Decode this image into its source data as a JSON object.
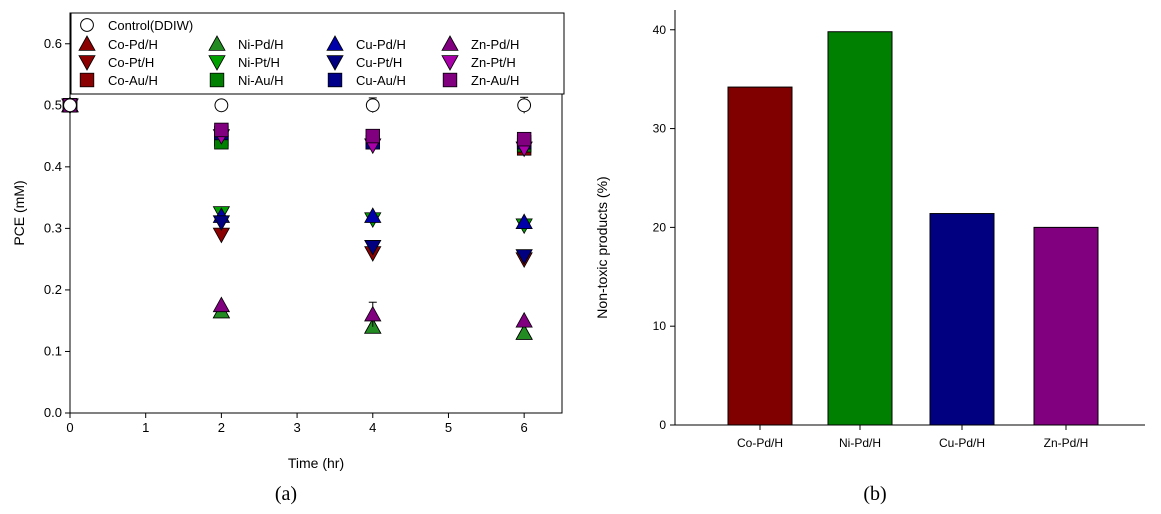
{
  "chart_data": [
    {
      "type": "scatter",
      "panel_label": "(a)",
      "xlabel": "Time (hr)",
      "ylabel": "PCE (mM)",
      "xlim": [
        0,
        6.5
      ],
      "ylim": [
        0,
        0.65
      ],
      "x_ticks": [
        0,
        1,
        2,
        3,
        4,
        5,
        6
      ],
      "y_ticks": [
        "0.0",
        "0.1",
        "0.2",
        "0.3",
        "0.4",
        "0.5",
        "0.6"
      ],
      "grid": false,
      "legend_position": "top",
      "x": [
        0,
        2,
        4,
        6
      ],
      "series": [
        {
          "name": "Control(DDIW)",
          "marker": "circle-open",
          "color": "#ffffff",
          "values": [
            0.5,
            0.5,
            0.5,
            0.5
          ],
          "error": [
            0,
            0.005,
            0.012,
            0.013
          ]
        },
        {
          "name": "Co-Pd/H",
          "marker": "triangle-up",
          "color": "#8b0000",
          "values": [
            0.5,
            0.165,
            0.14,
            0.13
          ],
          "error": [
            0,
            0,
            0,
            0
          ]
        },
        {
          "name": "Co-Pt/H",
          "marker": "triangle-down",
          "color": "#8b0000",
          "values": [
            0.5,
            0.29,
            0.26,
            0.25
          ],
          "error": [
            0,
            0,
            0,
            0
          ]
        },
        {
          "name": "Co-Au/H",
          "marker": "square",
          "color": "#8b0000",
          "values": [
            0.5,
            0.445,
            0.44,
            0.43
          ],
          "error": [
            0,
            0,
            0,
            0
          ]
        },
        {
          "name": "Ni-Pd/H",
          "marker": "triangle-up",
          "color": "#228b22",
          "values": [
            0.5,
            0.165,
            0.14,
            0.13
          ],
          "error": [
            0,
            0,
            0,
            0
          ]
        },
        {
          "name": "Ni-Pt/H",
          "marker": "triangle-down",
          "color": "#00a000",
          "values": [
            0.5,
            0.325,
            0.315,
            0.305
          ],
          "error": [
            0,
            0,
            0,
            0
          ]
        },
        {
          "name": "Ni-Au/H",
          "marker": "square",
          "color": "#008000",
          "values": [
            0.5,
            0.44,
            0.44,
            0.435
          ],
          "error": [
            0,
            0,
            0,
            0
          ]
        },
        {
          "name": "Cu-Pd/H",
          "marker": "triangle-up",
          "color": "#0000aa",
          "values": [
            0.5,
            0.32,
            0.32,
            0.31
          ],
          "error": [
            0,
            0,
            0,
            0
          ]
        },
        {
          "name": "Cu-Pt/H",
          "marker": "triangle-down",
          "color": "#000080",
          "values": [
            0.5,
            0.31,
            0.27,
            0.255
          ],
          "error": [
            0,
            0,
            0,
            0
          ]
        },
        {
          "name": "Cu-Au/H",
          "marker": "square",
          "color": "#00008b",
          "values": [
            0.5,
            0.455,
            0.44,
            0.44
          ],
          "error": [
            0,
            0,
            0,
            0
          ]
        },
        {
          "name": "Zn-Pd/H",
          "marker": "triangle-up",
          "color": "#800080",
          "values": [
            0.5,
            0.175,
            0.16,
            0.15
          ],
          "error": [
            0,
            0,
            0.02,
            0
          ]
        },
        {
          "name": "Zn-Pt/H",
          "marker": "triangle-down",
          "color": "#aa00aa",
          "values": [
            0.5,
            0.45,
            0.435,
            0.43
          ],
          "error": [
            0,
            0,
            0,
            0
          ]
        },
        {
          "name": "Zn-Au/H",
          "marker": "square",
          "color": "#800080",
          "values": [
            0.5,
            0.46,
            0.45,
            0.445
          ],
          "error": [
            0,
            0,
            0,
            0
          ]
        }
      ]
    },
    {
      "type": "bar",
      "panel_label": "(b)",
      "xlabel": "",
      "ylabel": "Non-toxic products (%)",
      "ylim": [
        0,
        42
      ],
      "y_ticks": [
        "0",
        "10",
        "20",
        "30",
        "40"
      ],
      "grid": false,
      "categories": [
        "Co-Pd/H",
        "Ni-Pd/H",
        "Cu-Pd/H",
        "Zn-Pd/H"
      ],
      "values": [
        34.2,
        39.8,
        21.4,
        20.0
      ],
      "colors": [
        "#800000",
        "#008000",
        "#000080",
        "#800080"
      ]
    }
  ]
}
